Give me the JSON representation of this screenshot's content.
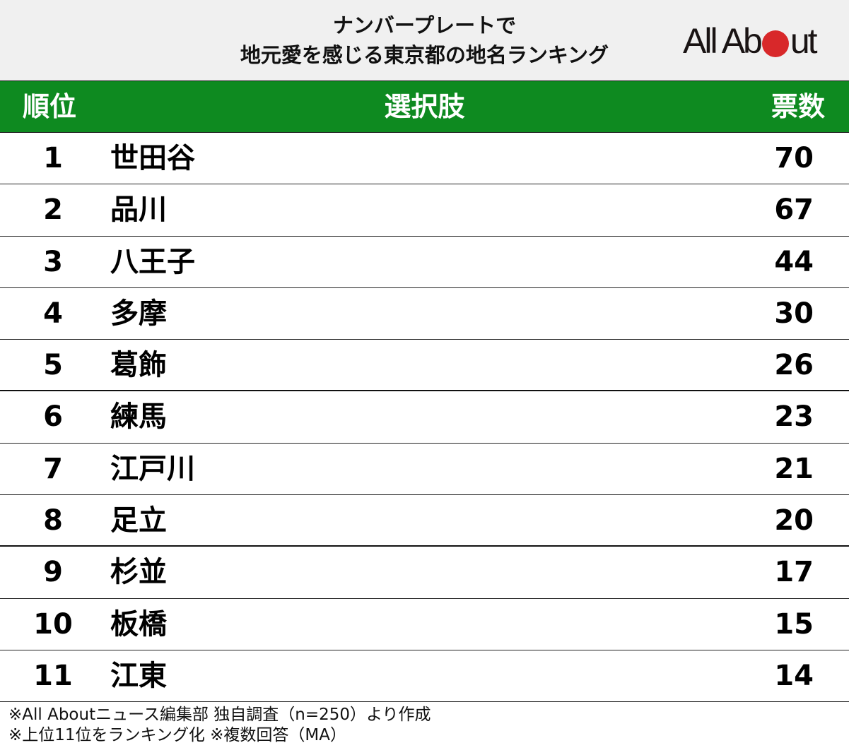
{
  "header": {
    "title_line1": "ナンバープレートで",
    "title_line2": "地元愛を感じる東京都の地名ランキング",
    "logo": {
      "text_before": "All Ab",
      "text_after": "ut",
      "dot_color": "#d8282a"
    }
  },
  "table": {
    "header_color": "#0e8a20",
    "columns": {
      "rank": "順位",
      "choice": "選択肢",
      "votes": "票数"
    },
    "rows": [
      {
        "rank": "1",
        "name": "世田谷",
        "votes": "70"
      },
      {
        "rank": "2",
        "name": "品川",
        "votes": "67"
      },
      {
        "rank": "3",
        "name": "八王子",
        "votes": "44"
      },
      {
        "rank": "4",
        "name": "多摩",
        "votes": "30"
      },
      {
        "rank": "5",
        "name": "葛飾",
        "votes": "26"
      },
      {
        "rank": "6",
        "name": "練馬",
        "votes": "23"
      },
      {
        "rank": "7",
        "name": "江戸川",
        "votes": "21"
      },
      {
        "rank": "8",
        "name": "足立",
        "votes": "20"
      },
      {
        "rank": "9",
        "name": "杉並",
        "votes": "17"
      },
      {
        "rank": "10",
        "name": "板橋",
        "votes": "15"
      },
      {
        "rank": "11",
        "name": "江東",
        "votes": "14"
      }
    ]
  },
  "footer": {
    "note1": "※All Aboutニュース編集部 独自調査（n=250）より作成",
    "note2": "※上位11位をランキング化 ※複数回答（MA）"
  }
}
